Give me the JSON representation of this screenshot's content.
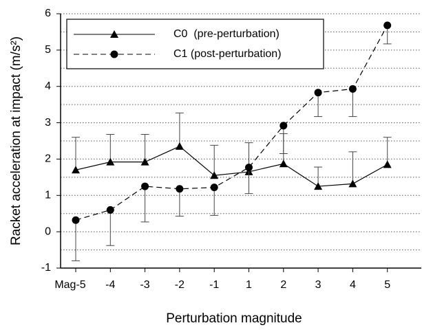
{
  "chart_data": {
    "type": "line",
    "xlabel": "Perturbation magnitude",
    "ylabel": "Racket acceleration at impact (m/s²)",
    "categories": [
      "Mag-5",
      "-4",
      "-3",
      "-2",
      "-1",
      "1",
      "2",
      "3",
      "4",
      "5"
    ],
    "series": [
      {
        "name": "C0  (pre-perturbation)",
        "color": "#000000",
        "marker": "triangle",
        "dash": "solid",
        "error_direction": "up",
        "values": [
          1.7,
          1.92,
          1.92,
          2.35,
          1.55,
          1.65,
          1.87,
          1.25,
          1.32,
          1.85
        ],
        "errors": [
          0.9,
          0.76,
          0.76,
          0.92,
          0.83,
          0.8,
          0.83,
          0.53,
          0.88,
          0.75
        ]
      },
      {
        "name": "C1 (post-perturbation)",
        "color": "#000000",
        "marker": "circle",
        "dash": "dashed",
        "error_direction": "down",
        "values": [
          0.32,
          0.6,
          1.25,
          1.18,
          1.22,
          1.77,
          2.92,
          3.83,
          3.93,
          5.68
        ],
        "errors": [
          1.12,
          0.98,
          0.98,
          0.75,
          0.77,
          0.72,
          0.77,
          0.66,
          0.76,
          0.51
        ]
      }
    ],
    "ylim": [
      -1,
      6
    ],
    "yticks": [
      -1,
      0,
      1,
      2,
      3,
      4,
      5,
      6
    ],
    "minor_yticks": [
      -0.5,
      0.5,
      1.5,
      2.5,
      3.5,
      4.5,
      5.5
    ],
    "grid": true,
    "legend": "upper left"
  }
}
